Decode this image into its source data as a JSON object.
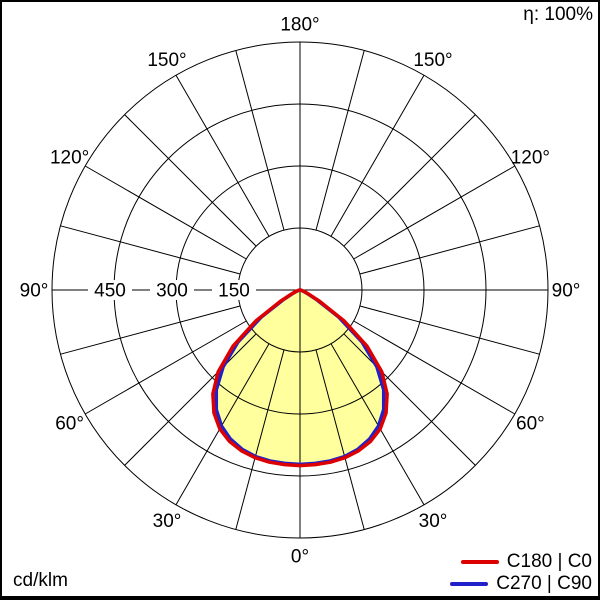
{
  "chart": {
    "efficiency_label": "η: 100%",
    "unit_label": "cd/klm"
  },
  "legend": {
    "position": "bottom-right",
    "entries": [
      {
        "label": "C180 | C0",
        "color": "#dd0000"
      },
      {
        "label": "C270 | C90",
        "color": "#2121cc"
      }
    ]
  },
  "chart_data": {
    "type": "line",
    "subtype": "polar-photometric-intensity-distribution",
    "unit": "cd/klm",
    "efficiency": "η: 100%",
    "orientation": "0° at bottom, 180° at top, curves mirrored left/right",
    "angle_labels": [
      "0°",
      "30°",
      "60°",
      "90°",
      "120°",
      "150°",
      "180°"
    ],
    "angle_grid_step_deg": 15,
    "radial_circles": [
      150,
      300,
      450,
      600
    ],
    "radial_tick_labels": [
      "450",
      "300",
      "150"
    ],
    "rmax": 600,
    "grid_on": true,
    "fill_color": "#ffff9e",
    "grid_color": "#000000",
    "gamma_deg": [
      0,
      5,
      10,
      15,
      20,
      25,
      30,
      35,
      40,
      45,
      50,
      55,
      60,
      65,
      70,
      75,
      80,
      85,
      90
    ],
    "series": [
      {
        "name": "C180 | C0",
        "color": "#dd0000",
        "values": [
          425,
          424,
          423,
          420,
          414,
          404,
          388,
          363,
          328,
          280,
          212,
          130,
          55,
          22,
          11,
          6,
          3,
          1,
          0
        ]
      },
      {
        "name": "C270 | C90",
        "color": "#2121cc",
        "values": [
          422,
          421,
          420,
          417,
          410,
          398,
          380,
          353,
          315,
          263,
          196,
          115,
          45,
          17,
          8,
          4,
          2,
          1,
          0
        ]
      }
    ]
  }
}
